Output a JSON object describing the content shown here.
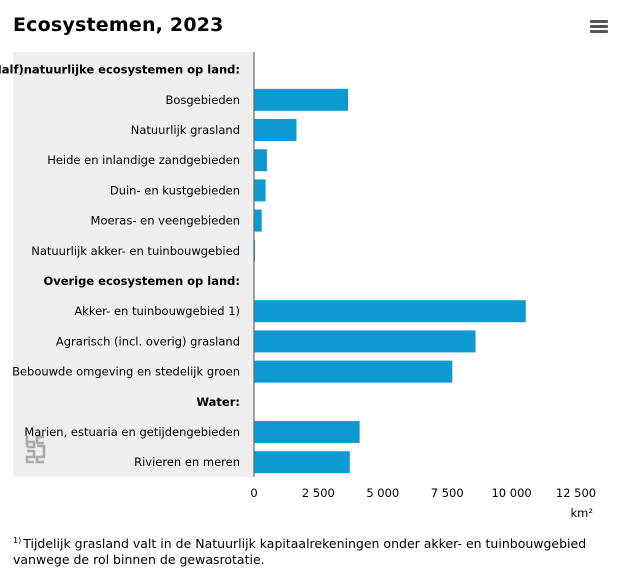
{
  "header": {
    "title": "Ecosystemen, 2023",
    "menu_icon": "hamburger-menu-icon"
  },
  "chart_data": {
    "type": "bar",
    "orientation": "horizontal",
    "categories": [
      "(Half)natuurlijke ecosystemen op land:",
      "Bosgebieden",
      "Natuurlijk grasland",
      "Heide en inlandige zandgebieden",
      "Duin- en kustgebieden",
      "Moeras- en veengebieden",
      "Natuurlijk akker- en tuinbouwgebied",
      "Overige ecosystemen op land:",
      "Akker- en tuinbouwgebied 1)",
      "Agrarisch (incl. overig) grasland",
      "Bebouwde omgeving en stedelijk groen",
      "Water:",
      "Marien, estuaria en getijdengebieden",
      "Rivieren en meren"
    ],
    "category_headers": [
      0,
      7,
      11
    ],
    "values": [
      null,
      3650,
      1650,
      500,
      450,
      300,
      20,
      null,
      10550,
      8600,
      7700,
      null,
      4100,
      3720
    ],
    "xlabel": "km²",
    "x_ticks": [
      0,
      2500,
      5000,
      7500,
      10000,
      12500
    ],
    "x_tick_labels": [
      "0",
      "2 500",
      "5 000",
      "7 500",
      "10 000",
      "12 500"
    ],
    "xlim": [
      0,
      12500
    ],
    "bar_color": "#0d9ad0",
    "label_panel_color": "#efefef"
  },
  "footnote": {
    "marker": "1)",
    "text": "Tijdelijk grasland valt in de Natuurlijk kapitaalrekeningen onder akker- en tuinbouwgebied vanwege de rol binnen de gewasrotatie."
  },
  "logo": "cbs-logo"
}
